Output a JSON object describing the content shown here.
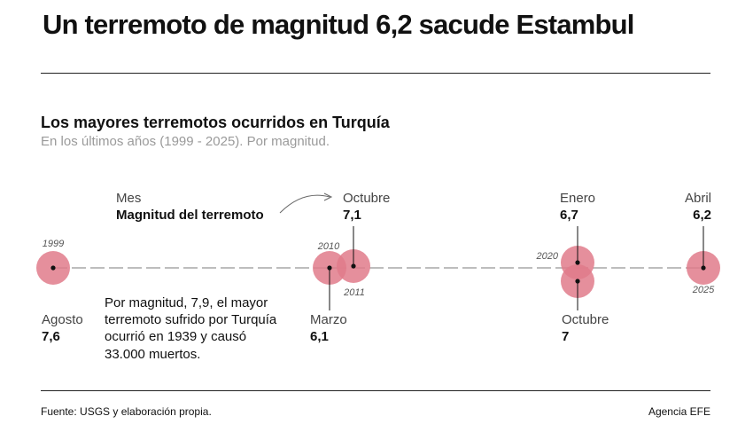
{
  "headline": "Un terremoto de magnitud 6,2 sacude Estambul",
  "chart_data": {
    "type": "scatter",
    "title": "Los mayores terremotos ocurridos en Turquía",
    "subtitle": "En los últimos años (1999 - 2025). Por magnitud.",
    "legend": {
      "month_label": "Mes",
      "magnitude_label": "Magnitud del terremoto"
    },
    "events": [
      {
        "year": "1999",
        "month": "Agosto",
        "magnitude": 7.6,
        "magnitude_label": "7,6"
      },
      {
        "year": "2010",
        "month": "Marzo",
        "magnitude": 6.1,
        "magnitude_label": "6,1"
      },
      {
        "year": "2011",
        "month": "Octubre",
        "magnitude": 7.1,
        "magnitude_label": "7,1"
      },
      {
        "year": "2020",
        "month": "Enero",
        "magnitude": 6.7,
        "magnitude_label": "6,7"
      },
      {
        "year": "2020",
        "month": "Octubre",
        "magnitude": 7.0,
        "magnitude_label": "7"
      },
      {
        "year": "2025",
        "month": "Abril",
        "magnitude": 6.2,
        "magnitude_label": "6,2"
      }
    ],
    "annotation_lines": [
      "Por magnitud, 7,9, el mayor",
      "terremoto sufrido por Turquía",
      "ocurrió en 1939 y causó",
      "33.000 muertos."
    ],
    "colors": {
      "bubble": "#e07b8b",
      "line": "#bdbdbd",
      "dot": "#111111"
    }
  },
  "footer": {
    "source": "Fuente: USGS y elaboración propia.",
    "agency": "Agencia EFE"
  }
}
